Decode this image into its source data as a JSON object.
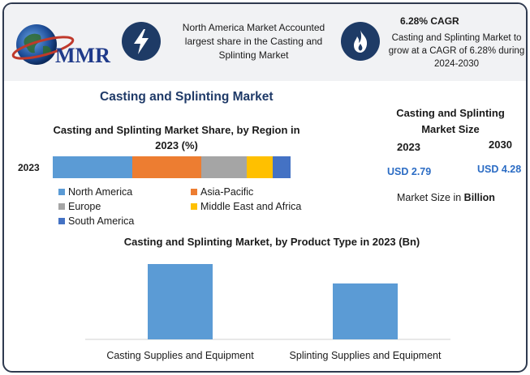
{
  "logo": {
    "text": "MMR"
  },
  "icons": {
    "left": "lightning-bolt",
    "right": "flame"
  },
  "header": {
    "left_text": "North America Market Accounted largest share in the Casting and Splinting Market",
    "right_title": "6.28% CAGR",
    "right_text": "Casting and Splinting Market to grow at a CAGR of 6.28% during 2024-2030"
  },
  "title": "Casting and Splinting Market",
  "market_size": {
    "title": "Casting and Splinting Market Size",
    "years": [
      "2023",
      "2030"
    ],
    "values": [
      "USD 2.79",
      "USD 4.28"
    ],
    "unit_prefix": "Market Size in ",
    "unit_bold": "Billion"
  },
  "colors": {
    "north_america": "#5b9bd5",
    "asia_pacific": "#ed7d31",
    "europe": "#a5a5a5",
    "middle_east_africa": "#ffc000",
    "south_america": "#4472c4",
    "bar": "#5b9bd5",
    "accent": "#1e3b66"
  },
  "chart_data": [
    {
      "type": "bar",
      "stacked": true,
      "orientation": "horizontal",
      "title": "Casting and Splinting Market Share, by Region in 2023 (%)",
      "categories": [
        "2023"
      ],
      "series": [
        {
          "name": "North America",
          "values": [
            33.5
          ]
        },
        {
          "name": "Asia-Pacific",
          "values": [
            29
          ]
        },
        {
          "name": "Europe",
          "values": [
            19
          ]
        },
        {
          "name": "Middle East and Africa",
          "values": [
            11
          ]
        },
        {
          "name": "South America",
          "values": [
            7.5
          ]
        }
      ],
      "legend_position": "bottom"
    },
    {
      "type": "bar",
      "title": "Casting and Splinting Market, by Product Type in 2023 (Bn)",
      "categories": [
        "Casting Supplies and Equipment",
        "Splinting Supplies and Equipment"
      ],
      "values": [
        1.55,
        1.15
      ],
      "ylim": [
        0,
        1.75
      ],
      "grid": false
    }
  ]
}
